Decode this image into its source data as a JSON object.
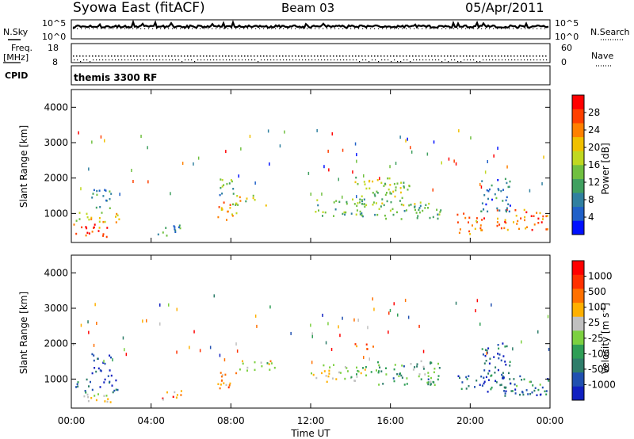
{
  "header": {
    "title": "Syowa East (fitACF)",
    "beam": "Beam 03",
    "date": "05/Apr/2011"
  },
  "summary_panels": {
    "nsky": {
      "label": "N.Sky",
      "ticks": [
        "10^5",
        "10^0"
      ],
      "right_label": "N.Search",
      "right_ticks": [
        "10^5",
        "10^0"
      ]
    },
    "freq": {
      "label_line1": "Freq.",
      "label_line2": "[MHz]",
      "ticks": [
        "18",
        "8"
      ],
      "right_label": "Nave",
      "right_ticks": [
        "60",
        "0"
      ]
    },
    "cpid": {
      "label": "CPID",
      "program": "themis 3300 RF"
    }
  },
  "chart_data": [
    {
      "type": "heatmap",
      "panel": "power",
      "xlabel": "Time UT",
      "ylabel": "Slant Range [km]",
      "x_ticks": [
        "00:00",
        "04:00",
        "08:00",
        "12:00",
        "16:00",
        "20:00",
        "00:00"
      ],
      "xlim_hours": [
        0,
        24
      ],
      "ylim": [
        180,
        4500
      ],
      "y_ticks": [
        1000,
        2000,
        3000,
        4000
      ],
      "colorbar": {
        "label": "Power [dB]",
        "ticks": [
          "4",
          "8",
          "12",
          "16",
          "20",
          "24",
          "28"
        ],
        "range": [
          0,
          30
        ],
        "colors": [
          "#0010ff",
          "#2060c8",
          "#3080a0",
          "#40a060",
          "#70c040",
          "#c0d820",
          "#f0c000",
          "#ff8000",
          "#ff4000",
          "#ff0000"
        ]
      },
      "patches": [
        {
          "t": [
            0.1,
            1.9
          ],
          "r": [
            300,
            700
          ],
          "level": 0.85
        },
        {
          "t": [
            0.2,
            2.5
          ],
          "r": [
            700,
            1000
          ],
          "level": 0.6
        },
        {
          "t": [
            1.0,
            2.0
          ],
          "r": [
            1000,
            1700
          ],
          "level": 0.3
        },
        {
          "t": [
            7.3,
            8.3
          ],
          "r": [
            700,
            1300
          ],
          "level": 0.7
        },
        {
          "t": [
            8.0,
            9.8
          ],
          "r": [
            1200,
            1500
          ],
          "level": 0.55
        },
        {
          "t": [
            7.1,
            8.1
          ],
          "r": [
            1500,
            2000
          ],
          "level": 0.35
        },
        {
          "t": [
            12.0,
            14.8
          ],
          "r": [
            900,
            1400
          ],
          "level": 0.4
        },
        {
          "t": [
            14.2,
            17.0
          ],
          "r": [
            1200,
            2000
          ],
          "level": 0.5
        },
        {
          "t": [
            15.0,
            18.5
          ],
          "r": [
            800,
            1300
          ],
          "level": 0.45
        },
        {
          "t": [
            19.3,
            20.7
          ],
          "r": [
            400,
            1000
          ],
          "level": 0.75
        },
        {
          "t": [
            21.3,
            24.0
          ],
          "r": [
            500,
            1100
          ],
          "level": 0.8
        },
        {
          "t": [
            20.5,
            22.0
          ],
          "r": [
            1000,
            2000
          ],
          "level": 0.25
        },
        {
          "t": [
            4.3,
            5.5
          ],
          "r": [
            300,
            700
          ],
          "level": 0.3
        }
      ]
    },
    {
      "type": "heatmap",
      "panel": "velocity",
      "xlabel": "Time UT",
      "ylabel": "Slant Range [km]",
      "x_ticks": [
        "00:00",
        "04:00",
        "08:00",
        "12:00",
        "16:00",
        "20:00",
        "00:00"
      ],
      "xlim_hours": [
        0,
        24
      ],
      "ylim": [
        180,
        4500
      ],
      "y_ticks": [
        1000,
        2000,
        3000,
        4000
      ],
      "colorbar": {
        "label": "Velocity [m s-1]",
        "ticks": [
          "1000",
          "500",
          "100",
          "25",
          "-25",
          "-100",
          "-500",
          "-1000"
        ],
        "colors": [
          "#1020c0",
          "#2050b0",
          "#2e7d6a",
          "#2f9e56",
          "#7cd040",
          "#c0c0c0",
          "#ffb000",
          "#ff7000",
          "#ff3000",
          "#ff0000"
        ]
      },
      "patches": [
        {
          "t": [
            0.1,
            2.0
          ],
          "r": [
            300,
            600
          ],
          "level": 0.55
        },
        {
          "t": [
            0.2,
            2.3
          ],
          "r": [
            600,
            1000
          ],
          "level": 0.2
        },
        {
          "t": [
            1.0,
            2.0
          ],
          "r": [
            1000,
            1700
          ],
          "level": 0.05
        },
        {
          "t": [
            4.3,
            5.5
          ],
          "r": [
            400,
            700
          ],
          "level": 0.75
        },
        {
          "t": [
            7.3,
            8.3
          ],
          "r": [
            700,
            1300
          ],
          "level": 0.72
        },
        {
          "t": [
            8.2,
            10.2
          ],
          "r": [
            1200,
            1500
          ],
          "level": 0.55
        },
        {
          "t": [
            12.0,
            14.8
          ],
          "r": [
            900,
            1400
          ],
          "level": 0.5
        },
        {
          "t": [
            14.0,
            15.2
          ],
          "r": [
            1800,
            2000
          ],
          "level": 0.75
        },
        {
          "t": [
            15.0,
            18.5
          ],
          "r": [
            800,
            1500
          ],
          "level": 0.35
        },
        {
          "t": [
            19.3,
            22.5
          ],
          "r": [
            600,
            1100
          ],
          "level": 0.2
        },
        {
          "t": [
            21.3,
            24.0
          ],
          "r": [
            500,
            1000
          ],
          "level": 0.25
        },
        {
          "t": [
            20.5,
            22.0
          ],
          "r": [
            1000,
            2000
          ],
          "level": 0.15
        }
      ]
    }
  ]
}
